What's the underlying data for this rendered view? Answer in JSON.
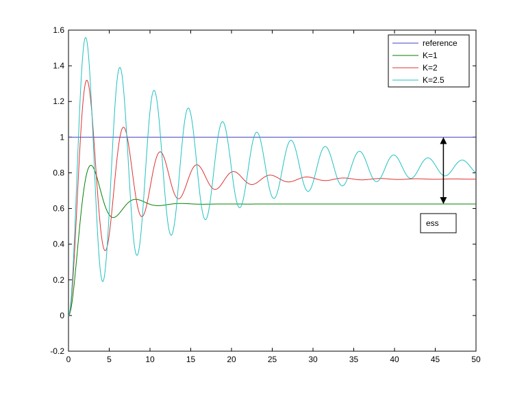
{
  "chart_data": {
    "type": "line",
    "title": "",
    "xlabel": "",
    "ylabel": "",
    "xlim": [
      0,
      50
    ],
    "ylim": [
      -0.2,
      1.6
    ],
    "xticks": [
      0,
      5,
      10,
      15,
      20,
      25,
      30,
      35,
      40,
      45,
      50
    ],
    "yticks": [
      -0.2,
      0,
      0.2,
      0.4,
      0.6,
      0.8,
      1,
      1.2,
      1.4,
      1.6
    ],
    "grid": false,
    "legend_position": "top-right",
    "series": [
      {
        "name": "reference",
        "color": "#4040c0",
        "kind": "constant",
        "value": 1.0
      },
      {
        "name": "K=1",
        "color": "#008000",
        "kind": "second-order-step",
        "final": 0.625,
        "peak_time": 3.2,
        "peak": 0.832,
        "decay_period": 5.5,
        "second_peak": 0.65
      },
      {
        "name": "K=2",
        "color": "#e03030",
        "kind": "second-order-step",
        "final": 0.765,
        "peak_time": 2.8,
        "peak": 1.27,
        "decay_period": 4.5,
        "second_peak": 1.03
      },
      {
        "name": "K=2.5",
        "color": "#20c0c0",
        "kind": "second-order-step",
        "final": 0.83,
        "peak_time": 2.6,
        "peak": 1.44,
        "decay_period": 4.2,
        "second_peak": 1.3
      }
    ],
    "annotations": [
      {
        "label": "ess",
        "type": "double-arrow",
        "x": 46,
        "y_from": 0.625,
        "y_to": 1.0
      }
    ]
  }
}
